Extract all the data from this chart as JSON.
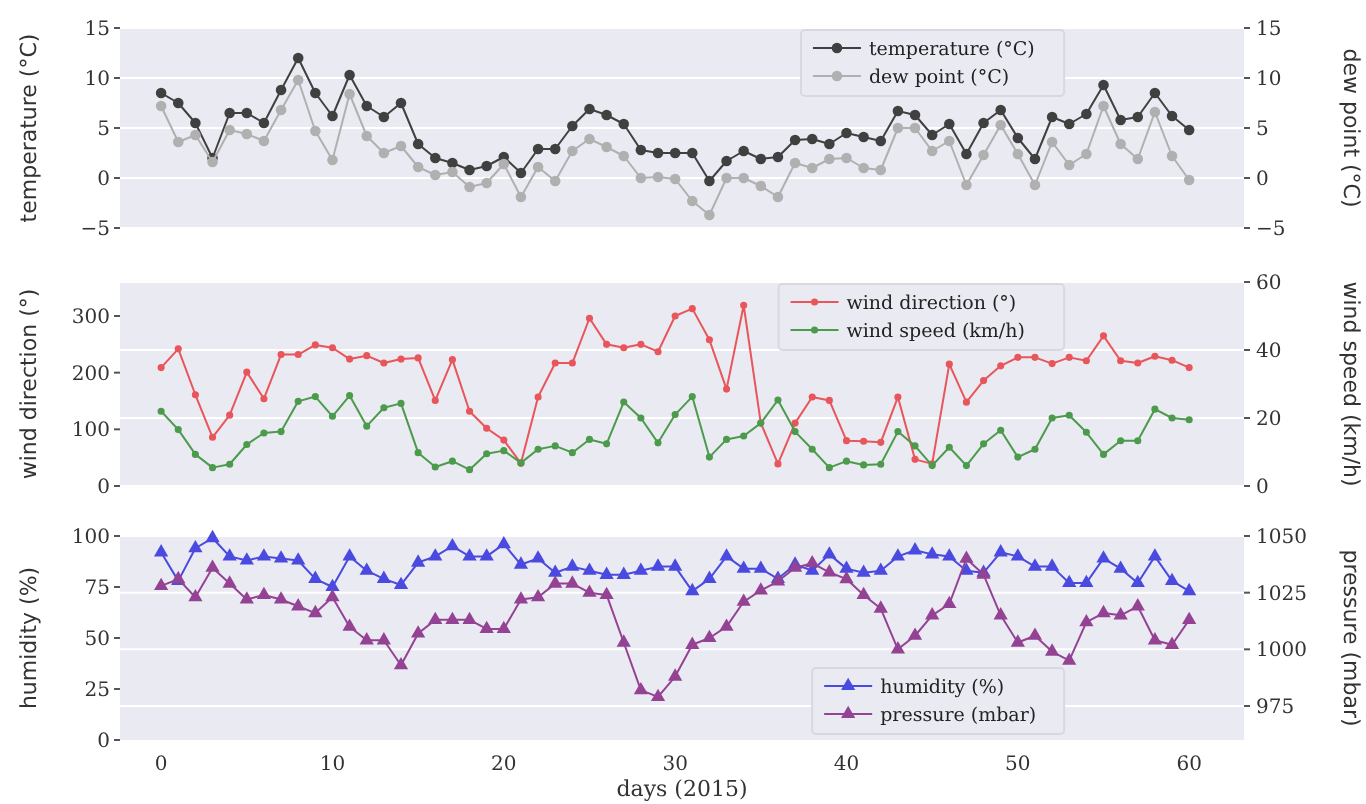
{
  "chart_data": [
    {
      "type": "line",
      "ylabel": "temperature (°C)",
      "y2label": "dew point (°C)",
      "x": [
        0,
        1,
        2,
        3,
        4,
        5,
        6,
        7,
        8,
        9,
        10,
        11,
        12,
        13,
        14,
        15,
        16,
        17,
        18,
        19,
        20,
        21,
        22,
        23,
        24,
        25,
        26,
        27,
        28,
        29,
        30,
        31,
        32,
        33,
        34,
        35,
        36,
        37,
        38,
        39,
        40,
        41,
        42,
        43,
        44,
        45,
        46,
        47,
        48,
        49,
        50,
        51,
        52,
        53,
        54,
        55,
        56,
        57,
        58,
        59,
        60
      ],
      "xlim": [
        -2.4,
        63.2
      ],
      "ylim": [
        -5,
        15
      ],
      "yticks": [
        {
          "value": -5,
          "label": "−5"
        },
        0,
        5,
        10,
        15
      ],
      "y2lim": [
        -5,
        15
      ],
      "y2ticks": [
        {
          "value": -5,
          "label": "−5"
        },
        0,
        5,
        10,
        15
      ],
      "tick_labels": "y",
      "grid": "y",
      "legend": "top right",
      "marker": "circle",
      "line_style": "solid",
      "series": [
        {
          "name": "temperature (°C)",
          "color": "#404040",
          "values": [
            8.5,
            7.5,
            5.5,
            2,
            6.5,
            6.5,
            5.5,
            8.8,
            12,
            8.5,
            6.2,
            10.3,
            7.2,
            6.1,
            7.5,
            3.4,
            2,
            1.5,
            0.8,
            1.2,
            2.1,
            0.5,
            2.9,
            2.9,
            5.2,
            6.9,
            6.3,
            5.4,
            2.8,
            2.5,
            2.5,
            2.5,
            -0.3,
            1.7,
            2.7,
            1.9,
            2.1,
            3.8,
            3.9,
            3.4,
            4.5,
            4.1,
            3.7,
            6.7,
            6.3,
            4.3,
            5.4,
            2.4,
            5.5,
            6.8,
            4,
            1.9,
            6.1,
            5.4,
            6.4,
            9.3,
            5.8,
            6.1,
            8.5,
            6.2,
            4.8
          ]
        },
        {
          "name": "dew point (°C)",
          "color": "#b0b0b0",
          "axis": "y2",
          "values": [
            7.2,
            3.6,
            4.3,
            1.6,
            4.8,
            4.4,
            3.7,
            6.8,
            9.8,
            4.7,
            1.8,
            8.4,
            4.2,
            2.5,
            3.2,
            1.1,
            0.3,
            0.6,
            -0.9,
            -0.5,
            1.4,
            -1.9,
            1.1,
            -0.3,
            2.7,
            3.9,
            3.1,
            2.2,
            0,
            0.1,
            -0.1,
            -2.3,
            -3.7,
            0,
            0,
            -0.8,
            -1.9,
            1.5,
            1,
            1.9,
            2,
            1,
            0.8,
            5,
            5,
            2.7,
            3.7,
            -0.7,
            2.3,
            5.3,
            2.4,
            -0.7,
            3.6,
            1.3,
            2.4,
            7.2,
            3.4,
            1.9,
            6.6,
            2.2,
            -0.2
          ]
        }
      ]
    },
    {
      "type": "line",
      "ylabel": "wind direction (°)",
      "y2label": "wind speed (km/h)",
      "x": [
        0,
        1,
        2,
        3,
        4,
        5,
        6,
        7,
        8,
        9,
        10,
        11,
        12,
        13,
        14,
        15,
        16,
        17,
        18,
        19,
        20,
        21,
        22,
        23,
        24,
        25,
        26,
        27,
        28,
        29,
        30,
        31,
        32,
        33,
        34,
        35,
        36,
        37,
        38,
        39,
        40,
        41,
        42,
        43,
        44,
        45,
        46,
        47,
        48,
        49,
        50,
        51,
        52,
        53,
        54,
        55,
        56,
        57,
        58,
        59,
        60
      ],
      "xlim": [
        -2.4,
        63.2
      ],
      "ylim": [
        0,
        360
      ],
      "yticks": [
        0,
        100,
        200,
        300
      ],
      "y2lim": [
        0,
        60
      ],
      "y2ticks": [
        0,
        20,
        40,
        60
      ],
      "tick_labels": "y",
      "grid": "y",
      "legend": "top right",
      "marker": "circle",
      "line_style": "solid",
      "series": [
        {
          "name": "wind direction (°)",
          "color": "#e8555a",
          "values": [
            209,
            242,
            161,
            86,
            125,
            201,
            154,
            232,
            232,
            249,
            244,
            224,
            230,
            217,
            224,
            226,
            151,
            223,
            132,
            102,
            81,
            40,
            157,
            217,
            217,
            296,
            250,
            244,
            250,
            237,
            300,
            313,
            258,
            171,
            319,
            111,
            39,
            111,
            157,
            151,
            80,
            79,
            77,
            157,
            47,
            39,
            215,
            148,
            186,
            212,
            227,
            227,
            216,
            227,
            221,
            265,
            221,
            217,
            229,
            222,
            209
          ]
        },
        {
          "name": "wind speed (km/h)",
          "color": "#4c9a4c",
          "axis": "y2",
          "values": [
            22,
            16.6,
            9.3,
            5.4,
            6.4,
            12.2,
            15.6,
            16,
            24.9,
            26.3,
            20.5,
            26.6,
            17.6,
            23,
            24.3,
            9.8,
            5.6,
            7.3,
            4.8,
            9.5,
            10.4,
            6.8,
            10.8,
            11.8,
            9.8,
            13.7,
            12.4,
            24.7,
            20,
            12.7,
            21,
            26.3,
            8.5,
            13.7,
            14.7,
            18.5,
            25.3,
            16,
            10.8,
            5.4,
            7.3,
            6.2,
            6.4,
            16,
            11.8,
            6,
            11.4,
            6,
            12.4,
            16.4,
            8.5,
            10.8,
            20,
            20.8,
            15.8,
            9.3,
            13.3,
            13.3,
            22.6,
            20,
            19.5
          ]
        }
      ]
    },
    {
      "type": "line",
      "xlabel": "days (2015)",
      "ylabel": "humidity (%)",
      "y2label": "pressure (mbar)",
      "x": [
        0,
        1,
        2,
        3,
        4,
        5,
        6,
        7,
        8,
        9,
        10,
        11,
        12,
        13,
        14,
        15,
        16,
        17,
        18,
        19,
        20,
        21,
        22,
        23,
        24,
        25,
        26,
        27,
        28,
        29,
        30,
        31,
        32,
        33,
        34,
        35,
        36,
        37,
        38,
        39,
        40,
        41,
        42,
        43,
        44,
        45,
        46,
        47,
        48,
        49,
        50,
        51,
        52,
        53,
        54,
        55,
        56,
        57,
        58,
        59,
        60
      ],
      "xlim": [
        -2.4,
        63.2
      ],
      "xticks": [
        0,
        10,
        20,
        30,
        40,
        50,
        60
      ],
      "ylim": [
        0,
        100
      ],
      "yticks": [
        0,
        25,
        50,
        75,
        100
      ],
      "y2lim": [
        960,
        1050
      ],
      "y2ticks": [
        975,
        1000,
        1025,
        1050
      ],
      "grid": "y",
      "legend": "bottom right",
      "marker": "triangle",
      "line_style": "solid",
      "series": [
        {
          "name": "humidity (%)",
          "color": "#4a4ae0",
          "values": [
            92,
            78,
            94,
            99,
            90,
            88,
            90,
            89,
            88,
            79,
            75,
            90,
            83,
            79,
            76,
            87,
            90,
            95,
            90,
            90,
            96,
            86,
            89,
            82,
            85,
            83,
            81,
            81,
            83,
            85,
            85,
            73,
            79,
            90,
            84,
            84,
            79,
            86,
            83,
            91,
            84,
            82,
            83,
            90,
            93,
            91,
            90,
            83,
            82,
            92,
            90,
            85,
            85,
            77,
            77,
            89,
            84,
            77,
            90,
            78,
            73
          ]
        },
        {
          "name": "pressure (mbar)",
          "color": "#944394",
          "axis": "y2",
          "values": [
            1028,
            1031,
            1023,
            1036,
            1029,
            1022,
            1024,
            1022,
            1019,
            1016,
            1023,
            1010,
            1004,
            1004,
            993,
            1007,
            1013,
            1013,
            1013,
            1009,
            1009,
            1022,
            1023,
            1029,
            1029,
            1025,
            1024,
            1003,
            982,
            979,
            988,
            1002,
            1005,
            1010,
            1021,
            1026,
            1030,
            1036,
            1038,
            1034,
            1031,
            1024,
            1018,
            1000,
            1006,
            1015,
            1020,
            1040,
            1033,
            1015,
            1003,
            1006,
            999,
            995,
            1012,
            1016,
            1015,
            1019,
            1004,
            1002,
            1013
          ]
        }
      ]
    }
  ]
}
